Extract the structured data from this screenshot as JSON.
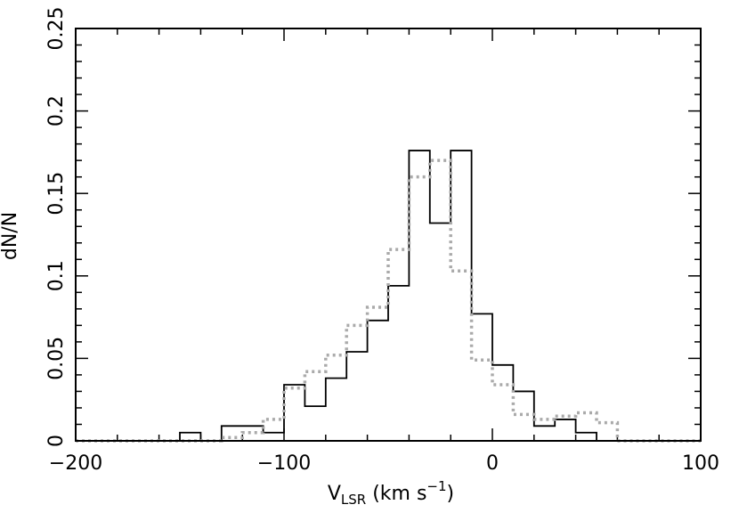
{
  "chart_data": {
    "type": "step-histogram",
    "xlabel": {
      "main": "V",
      "sub": "LSR",
      "units_pre": " (km s",
      "sup": "−1",
      "units_post": ")"
    },
    "ylabel": "dN/N",
    "xlim": [
      -200,
      100
    ],
    "ylim": [
      0,
      0.25
    ],
    "xticks": [
      {
        "v": -200,
        "label": "−200"
      },
      {
        "v": -100,
        "label": "−100"
      },
      {
        "v": 0,
        "label": "0"
      },
      {
        "v": 100,
        "label": "100"
      }
    ],
    "yticks": [
      {
        "v": 0,
        "label": "0"
      },
      {
        "v": 0.05,
        "label": "0.05"
      },
      {
        "v": 0.1,
        "label": "0.1"
      },
      {
        "v": 0.15,
        "label": "0.15"
      },
      {
        "v": 0.2,
        "label": "0.2"
      },
      {
        "v": 0.25,
        "label": "0.25"
      }
    ],
    "bin_edges": [
      -200,
      -190,
      -180,
      -170,
      -160,
      -150,
      -140,
      -130,
      -120,
      -110,
      -100,
      -90,
      -80,
      -70,
      -60,
      -50,
      -40,
      -30,
      -20,
      -10,
      0,
      10,
      20,
      30,
      40,
      50,
      60,
      70,
      80,
      90,
      100
    ],
    "series": [
      {
        "style": "solid",
        "color": "#000000",
        "values": [
          0,
          0,
          0,
          0,
          0,
          0.005,
          0,
          0.009,
          0.009,
          0.005,
          0.034,
          0.021,
          0.038,
          0.054,
          0.073,
          0.094,
          0.176,
          0.132,
          0.176,
          0.077,
          0.046,
          0.03,
          0.009,
          0.013,
          0.005,
          0,
          0,
          0,
          0,
          0
        ]
      },
      {
        "style": "dotted",
        "color": "#aaaaaa",
        "values": [
          0,
          0,
          0,
          0,
          0,
          0,
          0,
          0.002,
          0.005,
          0.013,
          0.032,
          0.042,
          0.052,
          0.07,
          0.081,
          0.116,
          0.16,
          0.17,
          0.103,
          0.049,
          0.034,
          0.016,
          0.013,
          0.015,
          0.017,
          0.011,
          0,
          0,
          0,
          0
        ]
      }
    ]
  }
}
